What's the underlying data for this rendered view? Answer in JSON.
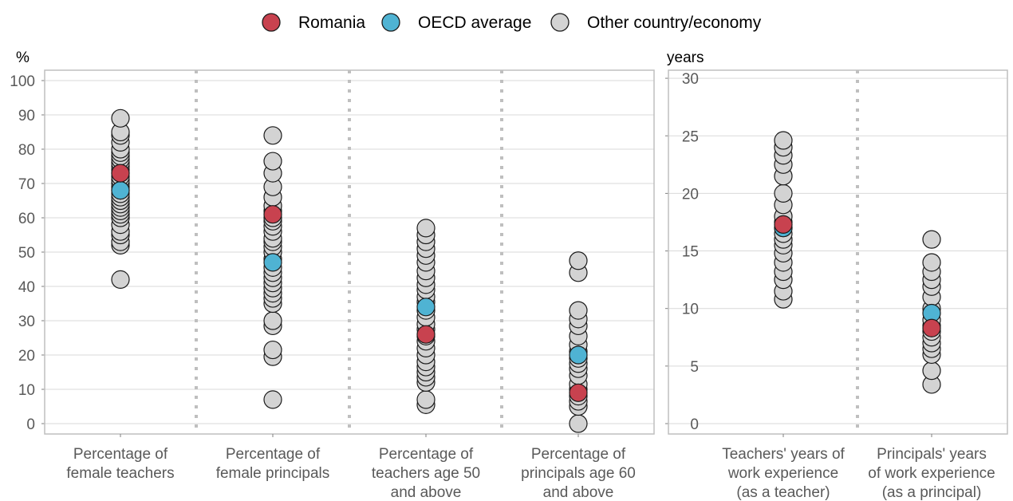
{
  "colors": {
    "romania": "#C8424F",
    "oecd": "#4FB3D3",
    "other": "#D3D3D3",
    "outline": "#1a1a1a",
    "grid": "#D9D9D9",
    "separator": "#BFBFBF",
    "frame": "#BFBFBF"
  },
  "legend": [
    {
      "key": "romania",
      "label": "Romania"
    },
    {
      "key": "oecd",
      "label": "OECD average"
    },
    {
      "key": "other",
      "label": "Other country/economy"
    }
  ],
  "chart_data": [
    {
      "type": "scatter",
      "unit_label": "%",
      "ylim": [
        0,
        100
      ],
      "yticks": [
        "0",
        "10",
        "20",
        "30",
        "40",
        "50",
        "60",
        "70",
        "80",
        "90",
        "100"
      ],
      "grid": true,
      "categories": [
        [
          "Percentage of",
          "female teachers"
        ],
        [
          "Percentage of",
          "female principals"
        ],
        [
          "Percentage of",
          "teachers age 50",
          "and above"
        ],
        [
          "Percentage of",
          "principals age 60",
          "and above"
        ]
      ],
      "other_values": [
        [
          42,
          52,
          53,
          55,
          56,
          58,
          60,
          61,
          62,
          63,
          64,
          65,
          66,
          67,
          68,
          69,
          70,
          71,
          72,
          73,
          74,
          75,
          76,
          77,
          78,
          79,
          80,
          82,
          84,
          85,
          89
        ],
        [
          7,
          19.5,
          21.5,
          28.5,
          30,
          35,
          36.5,
          38,
          39.5,
          41,
          42.5,
          44,
          45.5,
          48,
          50,
          51.5,
          53,
          54,
          56,
          57.5,
          59,
          60,
          62,
          63.5,
          66,
          69,
          73,
          76.5,
          84
        ],
        [
          5.5,
          7,
          12,
          13.5,
          15,
          16.5,
          18,
          20,
          22,
          24,
          25.5,
          27.5,
          29,
          31,
          33,
          35.5,
          37,
          39,
          40.5,
          42.5,
          44.5,
          47,
          49,
          51,
          53,
          55,
          57
        ],
        [
          0,
          5,
          6.5,
          8,
          10,
          11.5,
          14,
          16,
          17.5,
          19,
          21,
          23,
          25.5,
          28.5,
          30.5,
          33,
          44,
          47.5
        ]
      ],
      "series": [
        {
          "name": "Romania",
          "key": "romania",
          "values": [
            73,
            61,
            26,
            9
          ]
        },
        {
          "name": "OECD average",
          "key": "oecd",
          "values": [
            68,
            47,
            34,
            20
          ]
        }
      ]
    },
    {
      "type": "scatter",
      "unit_label": "years",
      "ylim": [
        0,
        30
      ],
      "yticks": [
        "0",
        "5",
        "10",
        "15",
        "20",
        "25",
        "30"
      ],
      "grid": true,
      "categories": [
        [
          "Teachers' years of",
          "work experience",
          "(as a teacher)"
        ],
        [
          "Principals' years",
          "of work experience",
          "(as a principal)"
        ]
      ],
      "other_values": [
        [
          10.8,
          11.5,
          12.5,
          13.2,
          14,
          14.8,
          15.5,
          16,
          16.5,
          17,
          17.5,
          18,
          19,
          20,
          21.5,
          22.5,
          23.3,
          24,
          24.6
        ],
        [
          3.4,
          4.6,
          6,
          6.5,
          7,
          7.5,
          8,
          8.5,
          9,
          10,
          11,
          11.9,
          12.5,
          13.2,
          14,
          16
        ]
      ],
      "series": [
        {
          "name": "Romania",
          "key": "romania",
          "values": [
            17.3,
            8.3
          ]
        },
        {
          "name": "OECD average",
          "key": "oecd",
          "values": [
            17,
            9.6
          ]
        }
      ]
    }
  ]
}
